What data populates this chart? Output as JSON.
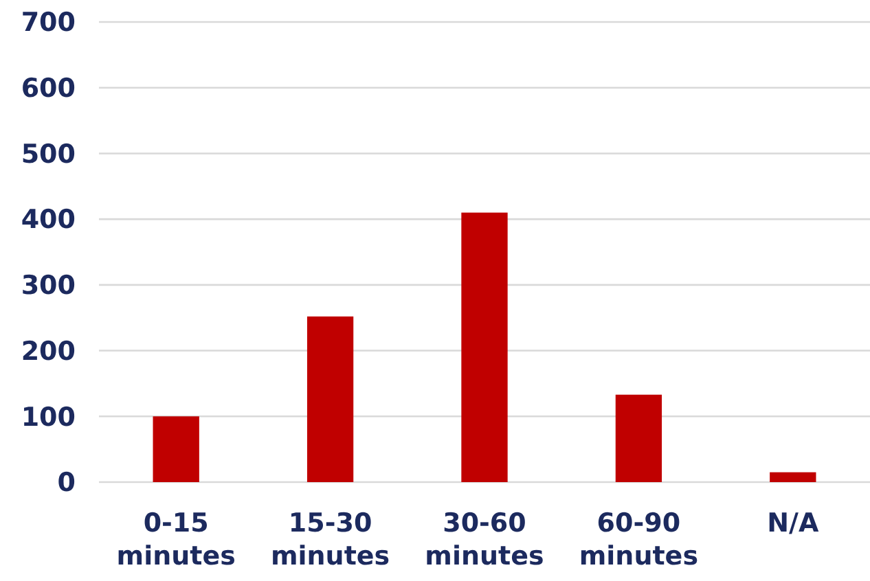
{
  "chart_data": {
    "type": "bar",
    "categories": [
      "0-15 minutes",
      "15-30 minutes",
      "30-60 minutes",
      "60-90 minutes",
      "N/A"
    ],
    "values": [
      100,
      252,
      410,
      133,
      15
    ],
    "color": "#c00000",
    "ylim": [
      0,
      700
    ],
    "yticks": [
      0,
      100,
      200,
      300,
      400,
      500,
      600,
      700
    ],
    "grid": "y"
  }
}
